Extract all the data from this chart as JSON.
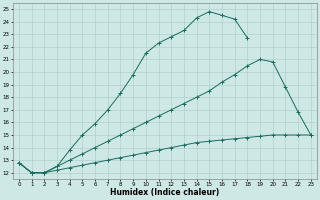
{
  "title": "",
  "xlabel": "Humidex (Indice chaleur)",
  "xlim": [
    -0.5,
    23.5
  ],
  "ylim": [
    11.5,
    25.5
  ],
  "xticks": [
    0,
    1,
    2,
    3,
    4,
    5,
    6,
    7,
    8,
    9,
    10,
    11,
    12,
    13,
    14,
    15,
    16,
    17,
    18,
    19,
    20,
    21,
    22,
    23
  ],
  "yticks": [
    12,
    13,
    14,
    15,
    16,
    17,
    18,
    19,
    20,
    21,
    22,
    23,
    24,
    25
  ],
  "background_color": "#cde8e5",
  "grid_color": "#aaccca",
  "line_color": "#1a6b5e",
  "line1_x": [
    0,
    1,
    2,
    3,
    4,
    5,
    6,
    7,
    8,
    9,
    10,
    11,
    12,
    13,
    14,
    15,
    16,
    17,
    18
  ],
  "line1_y": [
    12.8,
    12.0,
    12.0,
    12.5,
    13.8,
    15.0,
    15.9,
    17.0,
    18.3,
    19.8,
    21.5,
    22.3,
    22.8,
    23.3,
    24.3,
    24.8,
    24.5,
    24.2,
    22.7
  ],
  "line2_x": [
    0,
    1,
    2,
    3,
    4,
    5,
    6,
    7,
    8,
    9,
    10,
    11,
    12,
    13,
    14,
    15,
    16,
    17,
    18,
    19,
    20,
    21,
    22,
    23
  ],
  "line2_y": [
    12.8,
    12.0,
    12.0,
    12.5,
    13.0,
    13.5,
    14.0,
    14.5,
    15.0,
    15.5,
    16.0,
    16.5,
    17.0,
    17.5,
    18.0,
    18.5,
    19.2,
    19.8,
    20.5,
    21.0,
    20.8,
    18.8,
    16.8,
    15.0
  ],
  "line3_x": [
    0,
    1,
    2,
    3,
    4,
    5,
    6,
    7,
    8,
    9,
    10,
    11,
    12,
    13,
    14,
    15,
    16,
    17,
    18,
    19,
    20,
    21,
    22,
    23
  ],
  "line3_y": [
    12.8,
    12.0,
    12.0,
    12.2,
    12.4,
    12.6,
    12.8,
    13.0,
    13.2,
    13.4,
    13.6,
    13.8,
    14.0,
    14.2,
    14.4,
    14.5,
    14.6,
    14.7,
    14.8,
    14.9,
    15.0,
    15.0,
    15.0,
    15.0
  ]
}
